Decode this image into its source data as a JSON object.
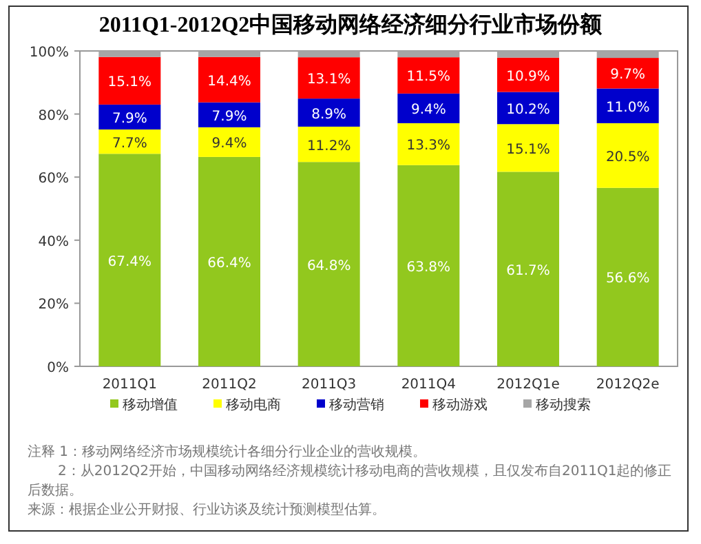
{
  "chart_data": {
    "type": "bar",
    "stacked": true,
    "title": "2011Q1-2012Q2中国移动网络经济细分行业市场份额",
    "categories": [
      "2011Q1",
      "2011Q2",
      "2011Q3",
      "2011Q4",
      "2012Q1e",
      "2012Q2e"
    ],
    "series": [
      {
        "name": "移动增值",
        "color": "#92c81e",
        "values": [
          67.4,
          66.4,
          64.8,
          63.8,
          61.7,
          56.6
        ],
        "value_labels": [
          "67.4%",
          "66.4%",
          "64.8%",
          "63.8%",
          "61.7%",
          "56.6%"
        ]
      },
      {
        "name": "移动电商",
        "color": "#ffff00",
        "values": [
          7.7,
          9.4,
          11.2,
          13.3,
          15.1,
          20.5
        ],
        "value_labels": [
          "7.7%",
          "9.4%",
          "11.2%",
          "13.3%",
          "15.1%",
          "20.5%"
        ]
      },
      {
        "name": "移动营销",
        "color": "#0000cc",
        "values": [
          7.9,
          7.9,
          8.9,
          9.4,
          10.2,
          11.0
        ],
        "value_labels": [
          "7.9%",
          "7.9%",
          "8.9%",
          "9.4%",
          "10.2%",
          "11.0%"
        ]
      },
      {
        "name": "移动游戏",
        "color": "#ff0000",
        "values": [
          15.1,
          14.4,
          13.1,
          11.5,
          10.9,
          9.7
        ],
        "value_labels": [
          "15.1%",
          "14.4%",
          "13.1%",
          "11.5%",
          "10.9%",
          "9.7%"
        ]
      },
      {
        "name": "移动搜索",
        "color": "#a6a6a6",
        "values": [
          1.9,
          1.9,
          2.0,
          2.0,
          2.1,
          2.2
        ]
      }
    ],
    "ylim": [
      0,
      100
    ],
    "yticks": [
      {
        "value": 0,
        "label": "0%"
      },
      {
        "value": 20,
        "label": "20%"
      },
      {
        "value": 40,
        "label": "40%"
      },
      {
        "value": 60,
        "label": "60%"
      },
      {
        "value": 80,
        "label": "80%"
      },
      {
        "value": 100,
        "label": "100%"
      }
    ],
    "legend": "bottom",
    "annotations": [
      "注释 1：移动网络经济市场规模统计各细分行业企业的营收规模。",
      "2：从2012Q2开始，中国移动网络经济规模统计移动电商的营收规模，且仅发布自2011Q1起的修正后数据。",
      "来源：根据企业公开财报、行业访谈及统计预测模型估算。"
    ]
  }
}
